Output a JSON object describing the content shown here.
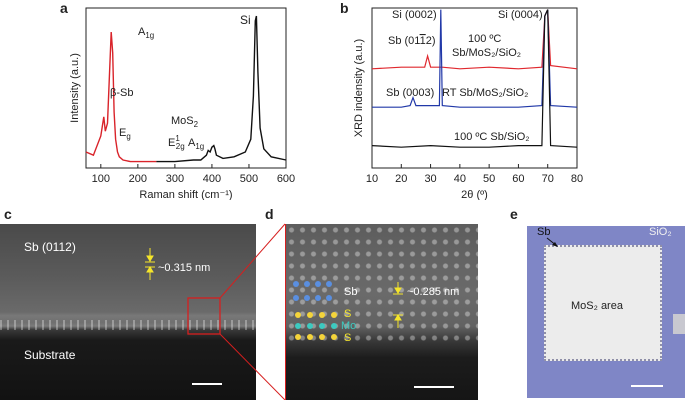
{
  "panels": {
    "a": "a",
    "b": "b",
    "c": "c",
    "d": "d",
    "e": "e"
  },
  "colors": {
    "raman_red": "#d9232a",
    "xrd_red": "#e0282e",
    "xrd_blue": "#2138a8",
    "black": "#111111",
    "atom_yellow": "#f4d43a",
    "atom_teal": "#3ccac0",
    "atom_blue": "#5a8fe0",
    "scale_yellow": "#f5e52a",
    "box_red": "#d61f1f",
    "wafer_blue": "#7f86c6"
  },
  "chart_data": [
    {
      "type": "line",
      "panel": "a",
      "xlabel": "Raman shift (cm⁻¹)",
      "ylabel": "Intensity (a.u.)",
      "xlim": [
        60,
        600
      ],
      "xticks": [
        "100",
        "200",
        "300",
        "400",
        "500",
        "600"
      ],
      "series": [
        {
          "color": "red",
          "x": [
            60,
            80,
            100,
            108,
            112,
            118,
            124,
            128,
            132,
            136,
            140,
            145,
            150,
            160,
            180,
            200,
            250
          ],
          "values": [
            0.1,
            0.08,
            0.2,
            0.32,
            0.23,
            0.28,
            0.62,
            0.85,
            0.72,
            0.35,
            0.18,
            0.1,
            0.07,
            0.05,
            0.04,
            0.04,
            0.04
          ]
        },
        {
          "color": "black",
          "x": [
            250,
            300,
            350,
            370,
            385,
            390,
            395,
            400,
            405,
            408,
            412,
            430,
            460,
            490,
            505,
            512,
            517,
            520,
            524,
            530,
            540,
            560,
            600
          ],
          "values": [
            0.04,
            0.04,
            0.05,
            0.05,
            0.08,
            0.11,
            0.1,
            0.13,
            0.14,
            0.12,
            0.08,
            0.06,
            0.07,
            0.1,
            0.18,
            0.45,
            0.92,
            0.95,
            0.6,
            0.25,
            0.12,
            0.07,
            0.05
          ]
        }
      ],
      "annotations": {
        "beta_sb": "β-Sb",
        "eg": "E_g",
        "a1g_sb": "A_1g",
        "mos2": "MoS_2",
        "e2g": "E¹_2g",
        "a1g_mos2": "A_1g",
        "si": "Si"
      }
    },
    {
      "type": "line",
      "panel": "b",
      "xlabel": "2θ (º)",
      "ylabel": "XRD indensity (a.u.)",
      "xlim": [
        10,
        80
      ],
      "xticks": [
        "10",
        "20",
        "30",
        "40",
        "50",
        "60",
        "70",
        "80"
      ],
      "series": [
        {
          "color": "red",
          "name": "100 ºC Sb/MoS₂/SiO₂",
          "x": [
            10,
            20,
            28,
            29,
            30,
            33,
            34,
            40,
            50,
            60,
            68,
            69,
            70,
            71,
            80
          ],
          "values": [
            0.62,
            0.63,
            0.63,
            0.7,
            0.63,
            0.63,
            0.63,
            0.62,
            0.63,
            0.62,
            0.63,
            0.95,
            0.99,
            0.64,
            0.62
          ]
        },
        {
          "color": "blue",
          "name": "RT Sb/MoS₂/SiO₂",
          "x": [
            10,
            20,
            23,
            24,
            25,
            33,
            33.5,
            34,
            40,
            50,
            60,
            68,
            69,
            70,
            71,
            80
          ],
          "values": [
            0.38,
            0.38,
            0.39,
            0.44,
            0.39,
            0.39,
            0.99,
            0.39,
            0.38,
            0.38,
            0.38,
            0.39,
            0.95,
            0.99,
            0.39,
            0.38
          ]
        },
        {
          "color": "black",
          "name": "100 ºC Sb/SiO₂",
          "x": [
            10,
            20,
            30,
            40,
            50,
            60,
            68,
            69,
            70,
            71,
            80
          ],
          "values": [
            0.14,
            0.13,
            0.14,
            0.13,
            0.13,
            0.14,
            0.14,
            0.95,
            0.99,
            0.14,
            0.13
          ]
        }
      ],
      "annotations": {
        "si0002": "Si (0002)",
        "si0004": "Si (0004)",
        "sb0112": "Sb (0112)",
        "sb0003": "Sb (0003)",
        "label_red_1": "100 ºC",
        "label_red_2": "Sb/MoS₂/SiO₂",
        "label_blue": "RT Sb/MoS₂/SiO₂",
        "label_black": "100 ºC Sb/SiO₂"
      }
    }
  ],
  "panel_c": {
    "sb_label": "Sb (0112)",
    "spacing": "~0.315 nm",
    "substrate": "Substrate"
  },
  "panel_d": {
    "sb": "Sb",
    "s_top": "S",
    "mo": "Mo",
    "s_bottom": "S",
    "spacing": "~0.285 nm"
  },
  "panel_e": {
    "sb": "Sb",
    "sio2": "SiO₂",
    "area": "MoS₂ area"
  }
}
